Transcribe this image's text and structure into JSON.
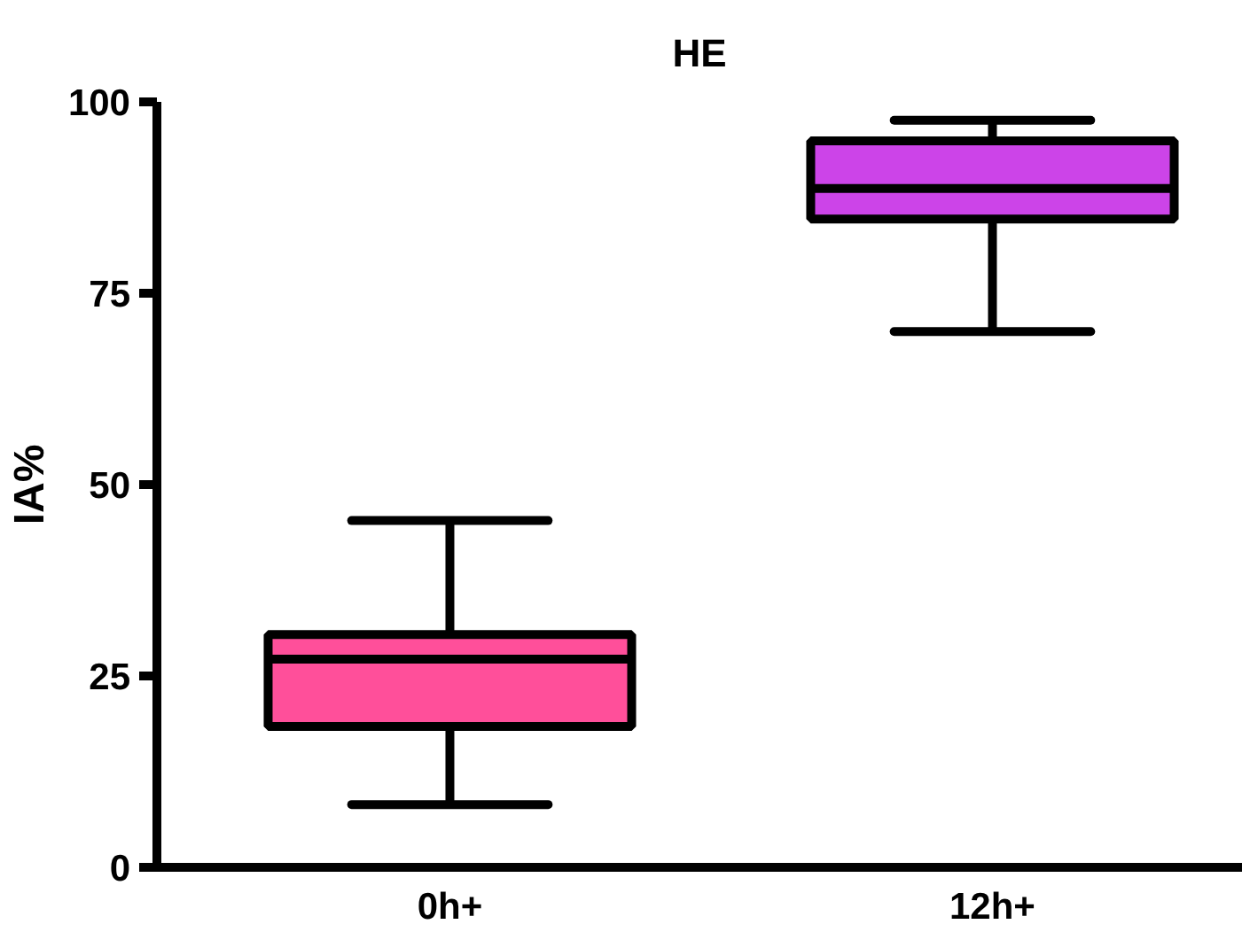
{
  "chart_data": {
    "type": "box",
    "title": "HE",
    "ylabel": "IA%",
    "categories": [
      "0h+",
      "12h+"
    ],
    "colors": [
      "#ff4f9a",
      "#cc44e8"
    ],
    "boxes": [
      {
        "low": 8.2,
        "q1": 18.4,
        "median": 27.2,
        "q3": 30.4,
        "high": 45.3
      },
      {
        "low": 70,
        "q1": 84.7,
        "median": 88.7,
        "q3": 94.9,
        "high": 97.6
      }
    ],
    "ylim": [
      0,
      100
    ],
    "yticks": [
      0,
      25,
      50,
      75,
      100
    ],
    "grid": false
  }
}
